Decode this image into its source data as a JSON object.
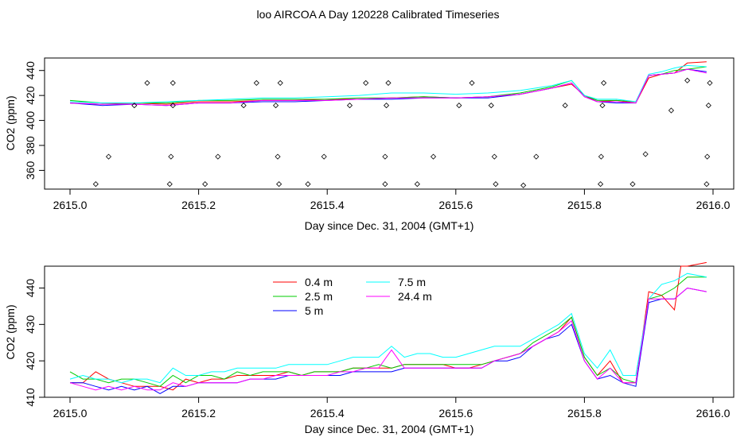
{
  "title": "loo AIRCOA A  Day 120228  Calibrated Timeseries",
  "chart_data": [
    {
      "type": "line",
      "xlabel": "Day since Dec. 31, 2004 (GMT+1)",
      "ylabel": "CO2 (ppm)",
      "xlim": [
        2615.0,
        2616.0
      ],
      "ylim": [
        345,
        450
      ],
      "xticks": [
        "2615.0",
        "2615.2",
        "2615.4",
        "2615.6",
        "2615.8",
        "2616.0"
      ],
      "yticks": [
        "360",
        "380",
        "400",
        "420",
        "440"
      ],
      "series_colors": [
        "#ff0000",
        "#00cc00",
        "#0000ff",
        "#00ffff",
        "#ff00ff"
      ],
      "series": [
        {
          "color": "#ff0000",
          "x": [
            2615.0,
            2615.05,
            2615.1,
            2615.15,
            2615.2,
            2615.25,
            2615.3,
            2615.35,
            2615.4,
            2615.45,
            2615.5,
            2615.55,
            2615.6,
            2615.65,
            2615.7,
            2615.75,
            2615.78,
            2615.8,
            2615.82,
            2615.85,
            2615.88,
            2615.9,
            2615.92,
            2615.94,
            2615.96,
            2615.99
          ],
          "values": [
            414,
            413,
            414,
            413,
            415,
            415,
            416,
            416,
            417,
            417,
            418,
            419,
            418,
            419,
            421,
            426,
            429,
            420,
            415,
            416,
            414,
            434,
            437,
            438,
            446,
            447
          ]
        },
        {
          "color": "#00cc00",
          "x": [
            2615.0,
            2615.05,
            2615.1,
            2615.15,
            2615.2,
            2615.25,
            2615.3,
            2615.35,
            2615.4,
            2615.45,
            2615.5,
            2615.55,
            2615.6,
            2615.65,
            2615.7,
            2615.75,
            2615.78,
            2615.8,
            2615.82,
            2615.85,
            2615.88,
            2615.9,
            2615.92,
            2615.94,
            2615.96,
            2615.99
          ],
          "values": [
            416,
            414,
            414,
            414,
            416,
            416,
            417,
            417,
            417,
            418,
            418,
            419,
            418,
            419,
            422,
            427,
            432,
            420,
            416,
            416,
            415,
            436,
            437,
            440,
            441,
            443
          ]
        },
        {
          "color": "#0000ff",
          "x": [
            2615.0,
            2615.05,
            2615.1,
            2615.15,
            2615.2,
            2615.25,
            2615.3,
            2615.35,
            2615.4,
            2615.45,
            2615.5,
            2615.55,
            2615.6,
            2615.65,
            2615.7,
            2615.75,
            2615.78,
            2615.8,
            2615.82,
            2615.85,
            2615.88,
            2615.9,
            2615.92,
            2615.94,
            2615.96,
            2615.99
          ],
          "values": [
            414,
            412,
            413,
            412,
            414,
            414,
            415,
            415,
            416,
            417,
            417,
            418,
            418,
            418,
            421,
            426,
            430,
            419,
            415,
            414,
            414,
            436,
            437,
            438,
            441,
            439
          ]
        },
        {
          "color": "#00ffff",
          "x": [
            2615.0,
            2615.05,
            2615.1,
            2615.15,
            2615.2,
            2615.25,
            2615.3,
            2615.35,
            2615.4,
            2615.45,
            2615.5,
            2615.55,
            2615.6,
            2615.65,
            2615.7,
            2615.75,
            2615.78,
            2615.8,
            2615.82,
            2615.85,
            2615.88,
            2615.9,
            2615.92,
            2615.94,
            2615.96,
            2615.99
          ],
          "values": [
            415,
            414,
            414,
            415,
            416,
            417,
            418,
            418,
            419,
            420,
            422,
            422,
            421,
            422,
            424,
            428,
            432,
            420,
            417,
            417,
            415,
            437,
            439,
            442,
            444,
            443
          ]
        },
        {
          "color": "#ff00ff",
          "x": [
            2615.0,
            2615.05,
            2615.1,
            2615.15,
            2615.2,
            2615.25,
            2615.3,
            2615.35,
            2615.4,
            2615.45,
            2615.5,
            2615.55,
            2615.6,
            2615.65,
            2615.7,
            2615.75,
            2615.78,
            2615.8,
            2615.82,
            2615.85,
            2615.88,
            2615.9,
            2615.92,
            2615.94,
            2615.96,
            2615.99
          ],
          "values": [
            414,
            413,
            413,
            412,
            414,
            414,
            416,
            416,
            416,
            417,
            418,
            418,
            418,
            419,
            421,
            426,
            430,
            419,
            415,
            415,
            414,
            436,
            437,
            438,
            441,
            438
          ]
        }
      ],
      "markers": {
        "x": [
          2615.04,
          2615.06,
          2615.1,
          2615.12,
          2615.155,
          2615.157,
          2615.16,
          2615.16,
          2615.21,
          2615.23,
          2615.27,
          2615.29,
          2615.32,
          2615.323,
          2615.325,
          2615.327,
          2615.37,
          2615.395,
          2615.435,
          2615.46,
          2615.49,
          2615.49,
          2615.492,
          2615.495,
          2615.54,
          2615.565,
          2615.605,
          2615.625,
          2615.655,
          2615.66,
          2615.662,
          2615.705,
          2615.725,
          2615.77,
          2615.825,
          2615.826,
          2615.828,
          2615.83,
          2615.875,
          2615.895,
          2615.935,
          2615.96,
          2615.99,
          2615.991,
          2615.993,
          2615.995
        ],
        "values": [
          349,
          371,
          412,
          430,
          349,
          371,
          412,
          430,
          349,
          371,
          412,
          430,
          412,
          371,
          349,
          430,
          349,
          371,
          412,
          430,
          349,
          371,
          412,
          430,
          349,
          371,
          412,
          430,
          412,
          371,
          349,
          348,
          371,
          412,
          349,
          371,
          412,
          430,
          349,
          373,
          408,
          432,
          349,
          371,
          412,
          430
        ]
      }
    },
    {
      "type": "line",
      "xlabel": "Day since Dec. 31, 2004 (GMT+1)",
      "ylabel": "CO2 (ppm)",
      "xlim": [
        2615.0,
        2616.0
      ],
      "ylim": [
        410,
        446
      ],
      "xticks": [
        "2615.0",
        "2615.2",
        "2615.4",
        "2615.6",
        "2615.8",
        "2616.0"
      ],
      "yticks": [
        "410",
        "420",
        "430",
        "440"
      ],
      "legend": [
        {
          "label": "0.4 m",
          "color": "#ff0000"
        },
        {
          "label": "2.5 m",
          "color": "#00cc00"
        },
        {
          "label": "5 m",
          "color": "#0000ff"
        },
        {
          "label": "7.5 m",
          "color": "#00ffff"
        },
        {
          "label": "24.4 m",
          "color": "#ff00ff"
        }
      ],
      "series": [
        {
          "name": "0.4 m",
          "color": "#ff0000",
          "x": [
            2615.0,
            2615.02,
            2615.04,
            2615.06,
            2615.08,
            2615.1,
            2615.12,
            2615.14,
            2615.16,
            2615.18,
            2615.2,
            2615.22,
            2615.24,
            2615.26,
            2615.28,
            2615.3,
            2615.32,
            2615.34,
            2615.36,
            2615.38,
            2615.4,
            2615.42,
            2615.44,
            2615.46,
            2615.48,
            2615.5,
            2615.52,
            2615.54,
            2615.56,
            2615.58,
            2615.6,
            2615.62,
            2615.64,
            2615.66,
            2615.68,
            2615.7,
            2615.72,
            2615.74,
            2615.76,
            2615.78,
            2615.8,
            2615.82,
            2615.84,
            2615.86,
            2615.88,
            2615.9,
            2615.92,
            2615.94,
            2615.95,
            2615.96,
            2615.99
          ],
          "values": [
            414,
            414,
            417,
            415,
            414,
            413,
            413,
            413,
            412,
            415,
            414,
            415,
            415,
            416,
            416,
            416,
            416,
            417,
            416,
            417,
            417,
            417,
            418,
            418,
            418,
            418,
            419,
            419,
            419,
            419,
            418,
            418,
            419,
            420,
            421,
            422,
            424,
            426,
            428,
            432,
            421,
            416,
            420,
            414,
            414,
            439,
            438,
            434,
            446,
            446,
            447
          ]
        },
        {
          "name": "2.5 m",
          "color": "#00cc00",
          "x": [
            2615.0,
            2615.02,
            2615.04,
            2615.06,
            2615.08,
            2615.1,
            2615.12,
            2615.14,
            2615.16,
            2615.18,
            2615.2,
            2615.22,
            2615.24,
            2615.26,
            2615.28,
            2615.3,
            2615.32,
            2615.34,
            2615.36,
            2615.38,
            2615.4,
            2615.42,
            2615.44,
            2615.46,
            2615.48,
            2615.5,
            2615.52,
            2615.54,
            2615.56,
            2615.58,
            2615.6,
            2615.62,
            2615.64,
            2615.66,
            2615.68,
            2615.7,
            2615.72,
            2615.74,
            2615.76,
            2615.78,
            2615.8,
            2615.82,
            2615.84,
            2615.86,
            2615.88,
            2615.9,
            2615.92,
            2615.94,
            2615.96,
            2615.99
          ],
          "values": [
            417,
            415,
            415,
            414,
            415,
            415,
            414,
            413,
            416,
            414,
            416,
            416,
            415,
            417,
            416,
            417,
            417,
            417,
            416,
            417,
            417,
            417,
            418,
            418,
            419,
            418,
            419,
            419,
            419,
            419,
            419,
            419,
            419,
            420,
            421,
            422,
            425,
            427,
            429,
            432,
            421,
            416,
            418,
            415,
            414,
            437,
            438,
            440,
            443,
            443
          ]
        },
        {
          "name": "5 m",
          "color": "#0000ff",
          "x": [
            2615.0,
            2615.02,
            2615.04,
            2615.06,
            2615.08,
            2615.1,
            2615.12,
            2615.14,
            2615.16,
            2615.18,
            2615.2,
            2615.22,
            2615.24,
            2615.26,
            2615.28,
            2615.3,
            2615.32,
            2615.34,
            2615.36,
            2615.38,
            2615.4,
            2615.42,
            2615.44,
            2615.46,
            2615.48,
            2615.5,
            2615.52,
            2615.54,
            2615.56,
            2615.58,
            2615.6,
            2615.62,
            2615.64,
            2615.66,
            2615.68,
            2615.7,
            2615.72,
            2615.74,
            2615.76,
            2615.78,
            2615.8,
            2615.82,
            2615.84,
            2615.86,
            2615.88,
            2615.9,
            2615.92,
            2615.94,
            2615.96,
            2615.99
          ],
          "values": [
            414,
            414,
            413,
            412,
            413,
            412,
            413,
            411,
            413,
            413,
            414,
            414,
            414,
            414,
            415,
            415,
            415,
            416,
            416,
            416,
            416,
            416,
            417,
            417,
            417,
            417,
            418,
            418,
            418,
            418,
            418,
            418,
            418,
            420,
            420,
            421,
            424,
            426,
            427,
            430,
            420,
            415,
            416,
            414,
            413,
            436,
            437,
            437,
            440,
            439
          ]
        },
        {
          "name": "7.5 m",
          "color": "#00ffff",
          "x": [
            2615.0,
            2615.02,
            2615.04,
            2615.06,
            2615.08,
            2615.1,
            2615.12,
            2615.14,
            2615.16,
            2615.18,
            2615.2,
            2615.22,
            2615.24,
            2615.26,
            2615.28,
            2615.3,
            2615.32,
            2615.34,
            2615.36,
            2615.38,
            2615.4,
            2615.42,
            2615.44,
            2615.46,
            2615.48,
            2615.5,
            2615.52,
            2615.54,
            2615.56,
            2615.58,
            2615.6,
            2615.62,
            2615.64,
            2615.66,
            2615.68,
            2615.7,
            2615.72,
            2615.74,
            2615.76,
            2615.78,
            2615.8,
            2615.82,
            2615.84,
            2615.86,
            2615.88,
            2615.9,
            2615.92,
            2615.94,
            2615.96,
            2615.99
          ],
          "values": [
            415,
            416,
            415,
            415,
            414,
            415,
            415,
            414,
            418,
            416,
            416,
            417,
            417,
            418,
            418,
            418,
            418,
            419,
            419,
            419,
            419,
            420,
            421,
            421,
            421,
            424,
            421,
            422,
            422,
            421,
            421,
            422,
            423,
            424,
            424,
            424,
            426,
            428,
            430,
            433,
            422,
            418,
            423,
            416,
            416,
            437,
            441,
            442,
            444,
            443
          ]
        },
        {
          "name": "24.4 m",
          "color": "#ff00ff",
          "x": [
            2615.0,
            2615.02,
            2615.04,
            2615.06,
            2615.08,
            2615.1,
            2615.12,
            2615.14,
            2615.16,
            2615.18,
            2615.2,
            2615.22,
            2615.24,
            2615.26,
            2615.28,
            2615.3,
            2615.32,
            2615.34,
            2615.36,
            2615.38,
            2615.4,
            2615.42,
            2615.44,
            2615.46,
            2615.48,
            2615.5,
            2615.52,
            2615.54,
            2615.56,
            2615.58,
            2615.6,
            2615.62,
            2615.64,
            2615.66,
            2615.68,
            2615.7,
            2615.72,
            2615.74,
            2615.76,
            2615.78,
            2615.8,
            2615.82,
            2615.84,
            2615.86,
            2615.88,
            2615.9,
            2615.92,
            2615.94,
            2615.96,
            2615.99
          ],
          "values": [
            414,
            413,
            412,
            413,
            412,
            413,
            412,
            412,
            414,
            413,
            414,
            414,
            414,
            414,
            415,
            415,
            416,
            416,
            416,
            416,
            416,
            417,
            417,
            418,
            418,
            423,
            418,
            418,
            418,
            418,
            418,
            418,
            418,
            420,
            421,
            422,
            424,
            426,
            428,
            431,
            420,
            415,
            418,
            414,
            414,
            437,
            437,
            437,
            440,
            439
          ]
        }
      ]
    }
  ]
}
